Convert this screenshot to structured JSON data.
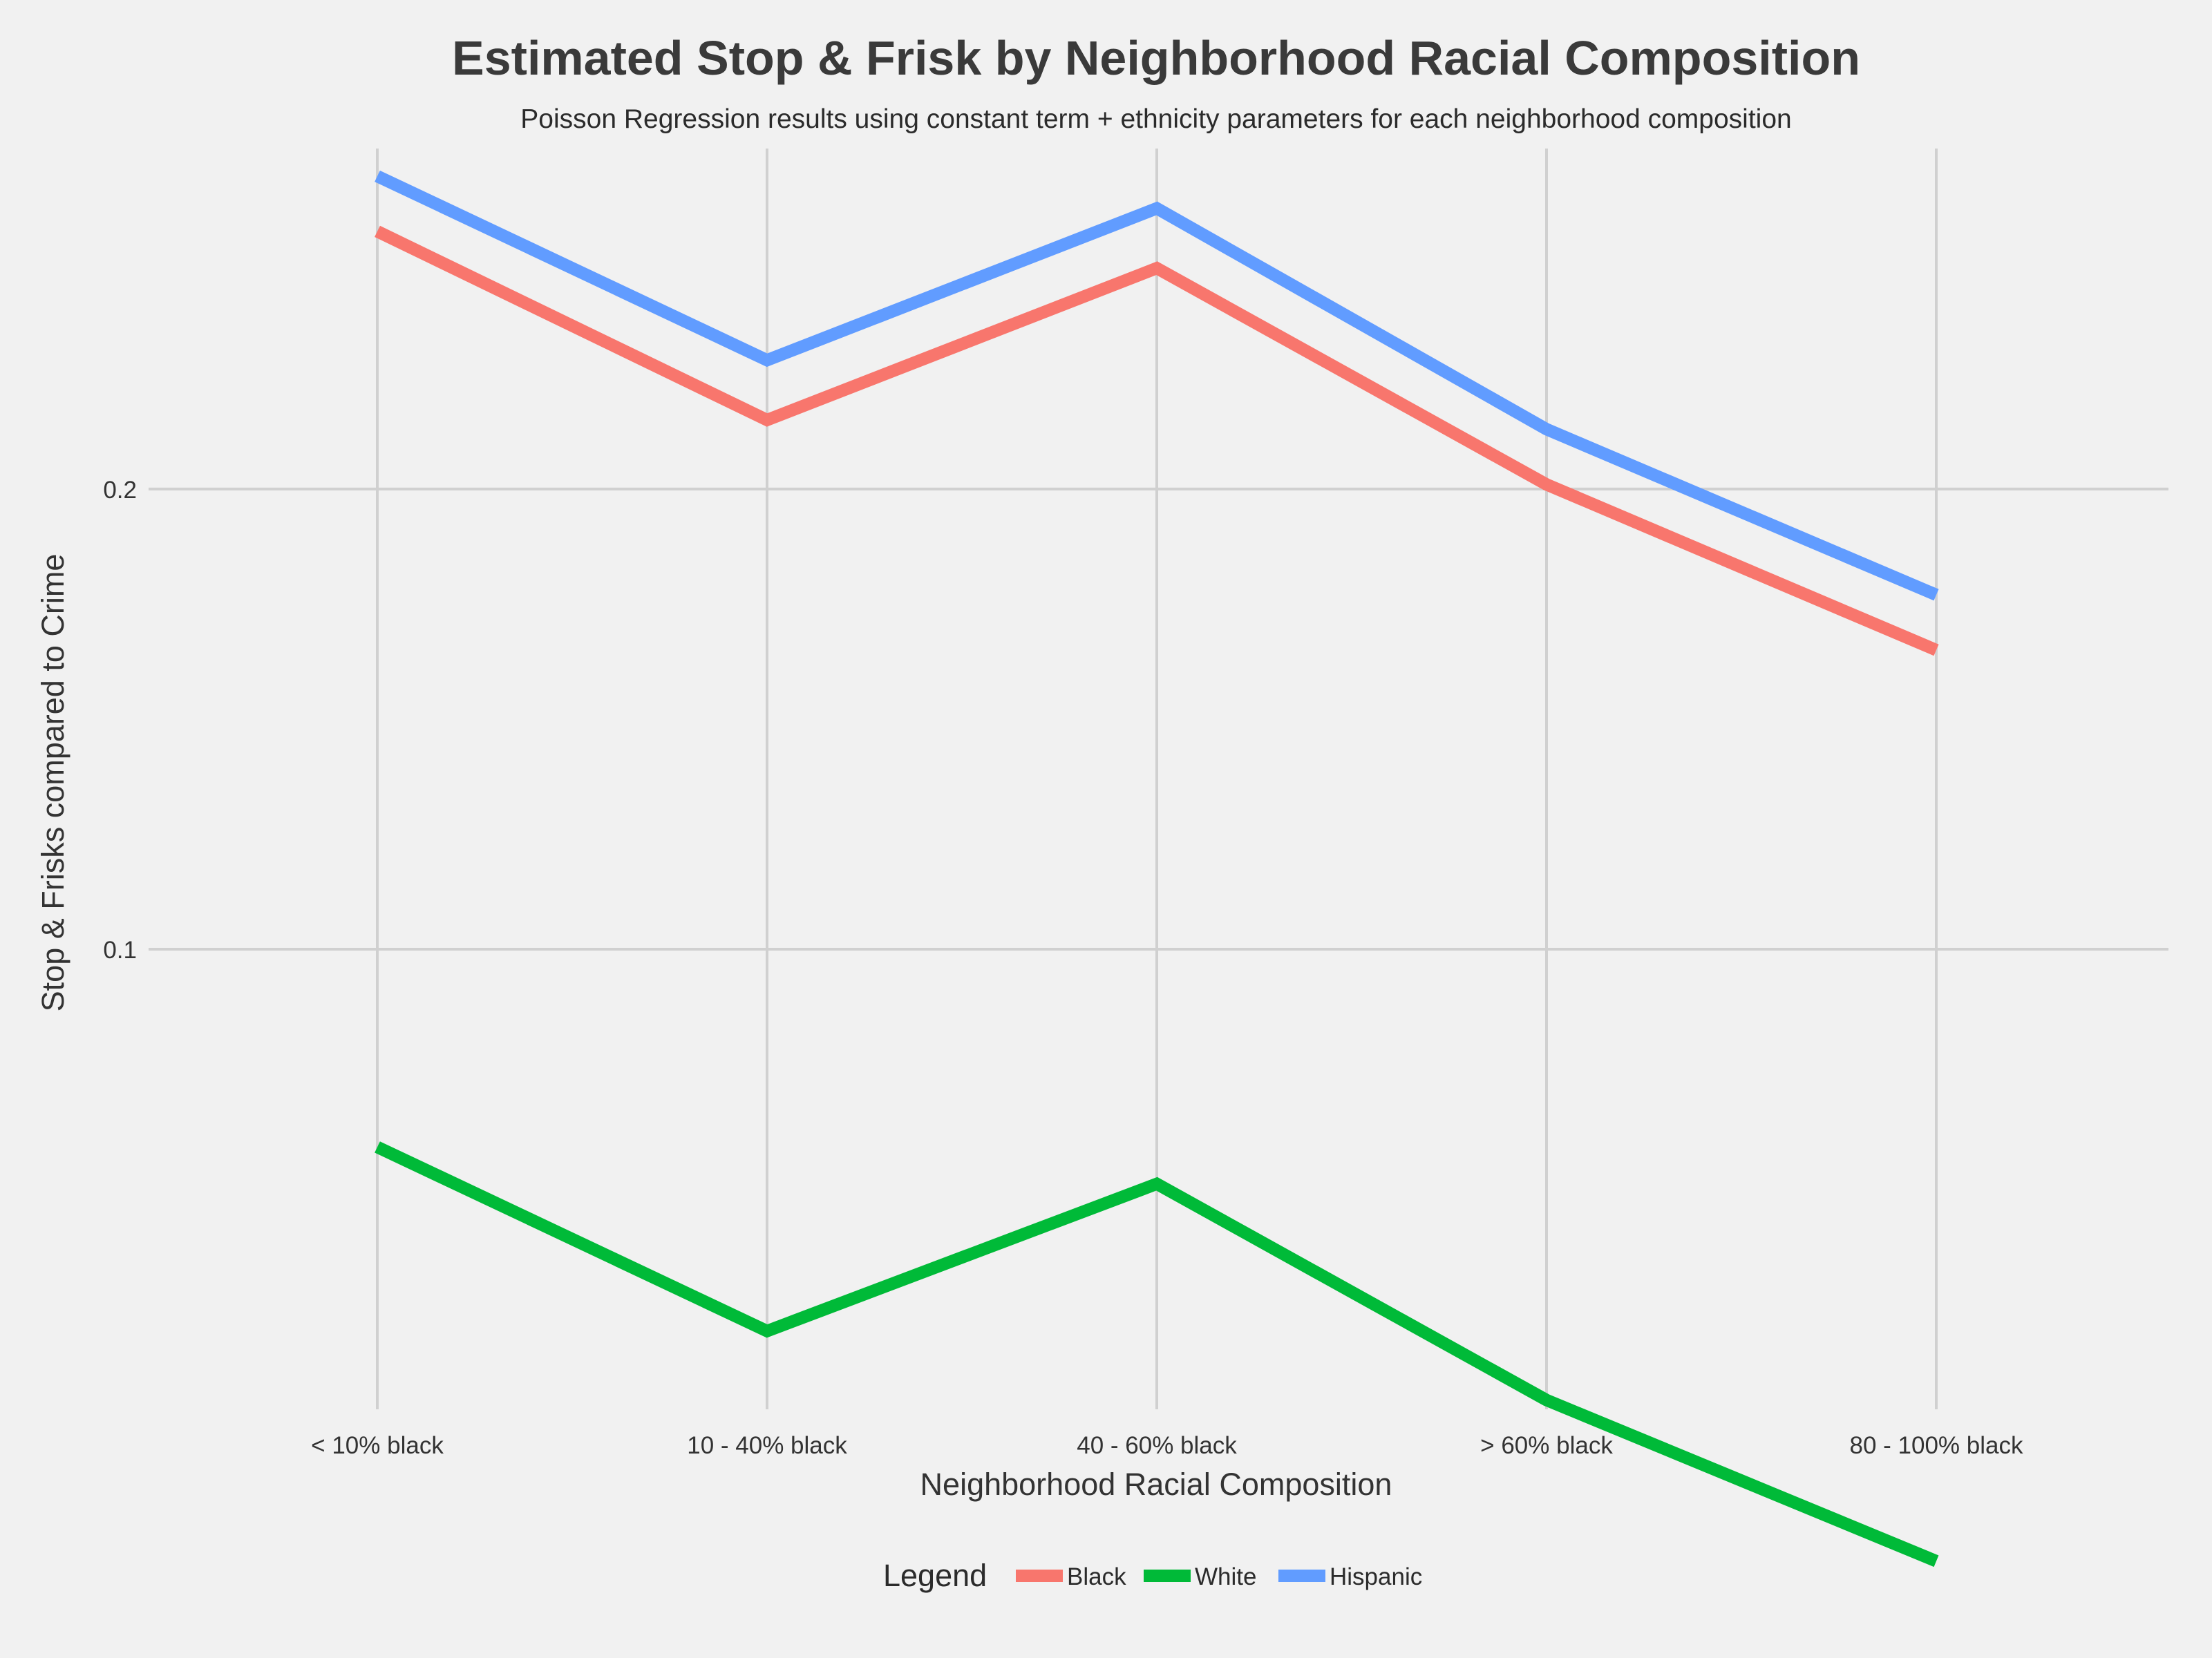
{
  "chart_data": {
    "type": "line",
    "title": "Estimated Stop & Frisk by Neighborhood Racial Composition",
    "subtitle": "Poisson Regression results using constant term + ethnicity parameters for each neighborhood composition",
    "xlabel": "Neighborhood Racial Composition",
    "ylabel": "Stop & Frisks compared to Crime",
    "categories": [
      "< 10% black",
      "10 - 40% black",
      "40 - 60% black",
      "> 60% black",
      "80 - 100% black"
    ],
    "y_ticks": [
      {
        "value": 0.1,
        "label": "0.1"
      },
      {
        "value": 0.2,
        "label": "0.2"
      }
    ],
    "ylim": [
      0.0,
      0.274
    ],
    "grid": true,
    "legend": {
      "title": "Legend",
      "position": "bottom"
    },
    "series": [
      {
        "name": "Black",
        "color": "#f8766d",
        "values": [
          0.256,
          0.215,
          0.248,
          0.201,
          0.165
        ]
      },
      {
        "name": "White",
        "color": "#00ba38",
        "values": [
          0.057,
          0.017,
          0.049,
          0.002,
          -0.033
        ]
      },
      {
        "name": "Hispanic",
        "color": "#619cff",
        "values": [
          0.268,
          0.228,
          0.261,
          0.213,
          0.177
        ]
      }
    ]
  }
}
